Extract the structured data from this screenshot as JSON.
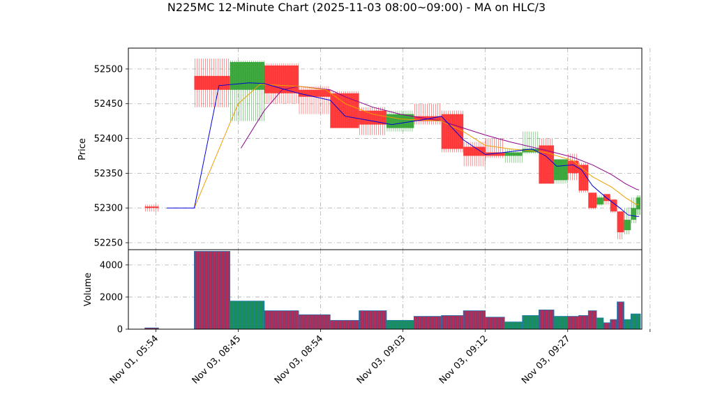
{
  "chart_data": {
    "type": "candlestick",
    "title": "N225MC 12-Minute Chart (2025-11-03 08:00~09:00) - MA on HLC/3",
    "price_panel": {
      "ylabel": "Price",
      "ylim": [
        52240,
        52530
      ],
      "yticks": [
        52250,
        52300,
        52350,
        52400,
        52450,
        52500
      ],
      "grid": true
    },
    "volume_panel": {
      "ylabel": "Volume",
      "ylim": [
        0,
        4950
      ],
      "yticks": [
        0,
        2000,
        4000
      ],
      "grid": true
    },
    "xlim": [
      -0.6,
      18.1
    ],
    "xticks": [
      {
        "x": 0.4,
        "label": "Nov 01, 05:54"
      },
      {
        "x": 3.4,
        "label": "Nov 03, 08:45"
      },
      {
        "x": 6.4,
        "label": "Nov 03, 08:54"
      },
      {
        "x": 9.4,
        "label": "Nov 03, 09:03"
      },
      {
        "x": 12.4,
        "label": "Nov 03, 09:12"
      },
      {
        "x": 15.4,
        "label": "Nov 03, 09:27"
      },
      {
        "x": 18.4,
        "label": ""
      }
    ],
    "colors": {
      "up": "#2ca02c",
      "down": "#ff2a2a",
      "ma_fast": "#0000dd",
      "ma_mid": "#f0a000",
      "ma_slow": "#8b008b",
      "volume_edge": "#1f77b4"
    },
    "candles": [
      {
        "x0": 0.0,
        "x1": 0.5,
        "o": 52302,
        "h": 52305,
        "l": 52295,
        "c": 52300,
        "v": 80
      },
      {
        "x0": 1.8,
        "x1": 3.1,
        "o": 52490,
        "h": 52515,
        "l": 52445,
        "c": 52470,
        "v": 4850
      },
      {
        "x0": 3.1,
        "x1": 4.35,
        "o": 52470,
        "h": 52512,
        "l": 52425,
        "c": 52510,
        "v": 1750
      },
      {
        "x0": 4.35,
        "x1": 5.6,
        "o": 52505,
        "h": 52508,
        "l": 52450,
        "c": 52465,
        "v": 1150
      },
      {
        "x0": 5.6,
        "x1": 6.75,
        "o": 52470,
        "h": 52475,
        "l": 52435,
        "c": 52460,
        "v": 900
      },
      {
        "x0": 6.75,
        "x1": 7.8,
        "o": 52465,
        "h": 52468,
        "l": 52415,
        "c": 52415,
        "v": 550
      },
      {
        "x0": 7.8,
        "x1": 8.8,
        "o": 52440,
        "h": 52445,
        "l": 52405,
        "c": 52420,
        "v": 1150
      },
      {
        "x0": 8.8,
        "x1": 9.8,
        "o": 52415,
        "h": 52440,
        "l": 52410,
        "c": 52435,
        "v": 550
      },
      {
        "x0": 9.8,
        "x1": 10.8,
        "o": 52432,
        "h": 52450,
        "l": 52420,
        "c": 52425,
        "v": 800
      },
      {
        "x0": 10.8,
        "x1": 11.6,
        "o": 52435,
        "h": 52440,
        "l": 52380,
        "c": 52385,
        "v": 850
      },
      {
        "x0": 11.6,
        "x1": 12.4,
        "o": 52388,
        "h": 52395,
        "l": 52360,
        "c": 52375,
        "v": 1150
      },
      {
        "x0": 12.4,
        "x1": 13.1,
        "o": 52380,
        "h": 52400,
        "l": 52372,
        "c": 52375,
        "v": 750
      },
      {
        "x0": 13.1,
        "x1": 13.75,
        "o": 52375,
        "h": 52385,
        "l": 52365,
        "c": 52380,
        "v": 450
      },
      {
        "x0": 13.75,
        "x1": 14.35,
        "o": 52380,
        "h": 52410,
        "l": 52378,
        "c": 52385,
        "v": 850
      },
      {
        "x0": 14.35,
        "x1": 14.9,
        "o": 52390,
        "h": 52400,
        "l": 52335,
        "c": 52335,
        "v": 1200
      },
      {
        "x0": 14.9,
        "x1": 15.4,
        "o": 52340,
        "h": 52370,
        "l": 52335,
        "c": 52370,
        "v": 800
      },
      {
        "x0": 15.4,
        "x1": 15.8,
        "o": 52368,
        "h": 52378,
        "l": 52340,
        "c": 52350,
        "v": 800
      },
      {
        "x0": 15.8,
        "x1": 16.15,
        "o": 52362,
        "h": 52365,
        "l": 52322,
        "c": 52325,
        "v": 850
      },
      {
        "x0": 16.15,
        "x1": 16.45,
        "o": 52322,
        "h": 52322,
        "l": 52298,
        "c": 52300,
        "v": 1150
      },
      {
        "x0": 16.45,
        "x1": 16.7,
        "o": 52305,
        "h": 52318,
        "l": 52303,
        "c": 52315,
        "v": 700
      },
      {
        "x0": 16.7,
        "x1": 16.95,
        "o": 52320,
        "h": 52318,
        "l": 52305,
        "c": 52310,
        "v": 400
      },
      {
        "x0": 16.95,
        "x1": 17.2,
        "o": 52312,
        "h": 52313,
        "l": 52293,
        "c": 52295,
        "v": 600
      },
      {
        "x0": 17.2,
        "x1": 17.45,
        "o": 52295,
        "h": 52295,
        "l": 52255,
        "c": 52265,
        "v": 1700
      },
      {
        "x0": 17.45,
        "x1": 17.7,
        "o": 52268,
        "h": 52300,
        "l": 52262,
        "c": 52283,
        "v": 600
      },
      {
        "x0": 17.7,
        "x1": 17.9,
        "o": 52283,
        "h": 52315,
        "l": 52278,
        "c": 52300,
        "v": 950
      },
      {
        "x0": 17.9,
        "x1": 18.05,
        "o": 52298,
        "h": 52318,
        "l": 52290,
        "c": 52315,
        "v": 950
      }
    ],
    "ma_fast": [
      [
        0.8,
        52300
      ],
      [
        1.8,
        52300
      ],
      [
        2.7,
        52476
      ],
      [
        3.8,
        52480
      ],
      [
        4.35,
        52479
      ],
      [
        5.6,
        52465
      ],
      [
        6.75,
        52455
      ],
      [
        7.3,
        52432
      ],
      [
        8.3,
        52425
      ],
      [
        9.0,
        52420
      ],
      [
        10.3,
        52428
      ],
      [
        10.8,
        52432
      ],
      [
        11.6,
        52398
      ],
      [
        12.4,
        52377
      ],
      [
        13.1,
        52380
      ],
      [
        14.1,
        52385
      ],
      [
        14.6,
        52375
      ],
      [
        15.0,
        52360
      ],
      [
        15.6,
        52362
      ],
      [
        15.9,
        52355
      ],
      [
        16.3,
        52332
      ],
      [
        16.8,
        52315
      ],
      [
        17.3,
        52300
      ],
      [
        17.6,
        52290
      ],
      [
        17.9,
        52288
      ],
      [
        18.0,
        52288
      ]
    ],
    "ma_mid": [
      [
        1.8,
        52300
      ],
      [
        3.4,
        52450
      ],
      [
        4.2,
        52478
      ],
      [
        5.6,
        52475
      ],
      [
        6.6,
        52470
      ],
      [
        7.3,
        52450
      ],
      [
        8.3,
        52435
      ],
      [
        9.3,
        52428
      ],
      [
        10.8,
        52425
      ],
      [
        11.6,
        52410
      ],
      [
        12.4,
        52390
      ],
      [
        13.3,
        52385
      ],
      [
        14.6,
        52380
      ],
      [
        15.6,
        52368
      ],
      [
        16.3,
        52345
      ],
      [
        17.0,
        52330
      ],
      [
        17.5,
        52315
      ],
      [
        17.9,
        52305
      ],
      [
        18.0,
        52305
      ]
    ],
    "ma_slow": [
      [
        3.5,
        52386
      ],
      [
        4.35,
        52440
      ],
      [
        5.0,
        52470
      ],
      [
        5.6,
        52475
      ],
      [
        6.75,
        52470
      ],
      [
        7.3,
        52460
      ],
      [
        8.3,
        52445
      ],
      [
        9.3,
        52435
      ],
      [
        10.8,
        52425
      ],
      [
        11.6,
        52415
      ],
      [
        12.4,
        52405
      ],
      [
        13.3,
        52395
      ],
      [
        14.6,
        52383
      ],
      [
        15.6,
        52373
      ],
      [
        16.3,
        52362
      ],
      [
        17.0,
        52348
      ],
      [
        17.5,
        52335
      ],
      [
        17.9,
        52327
      ],
      [
        18.0,
        52326
      ]
    ]
  }
}
